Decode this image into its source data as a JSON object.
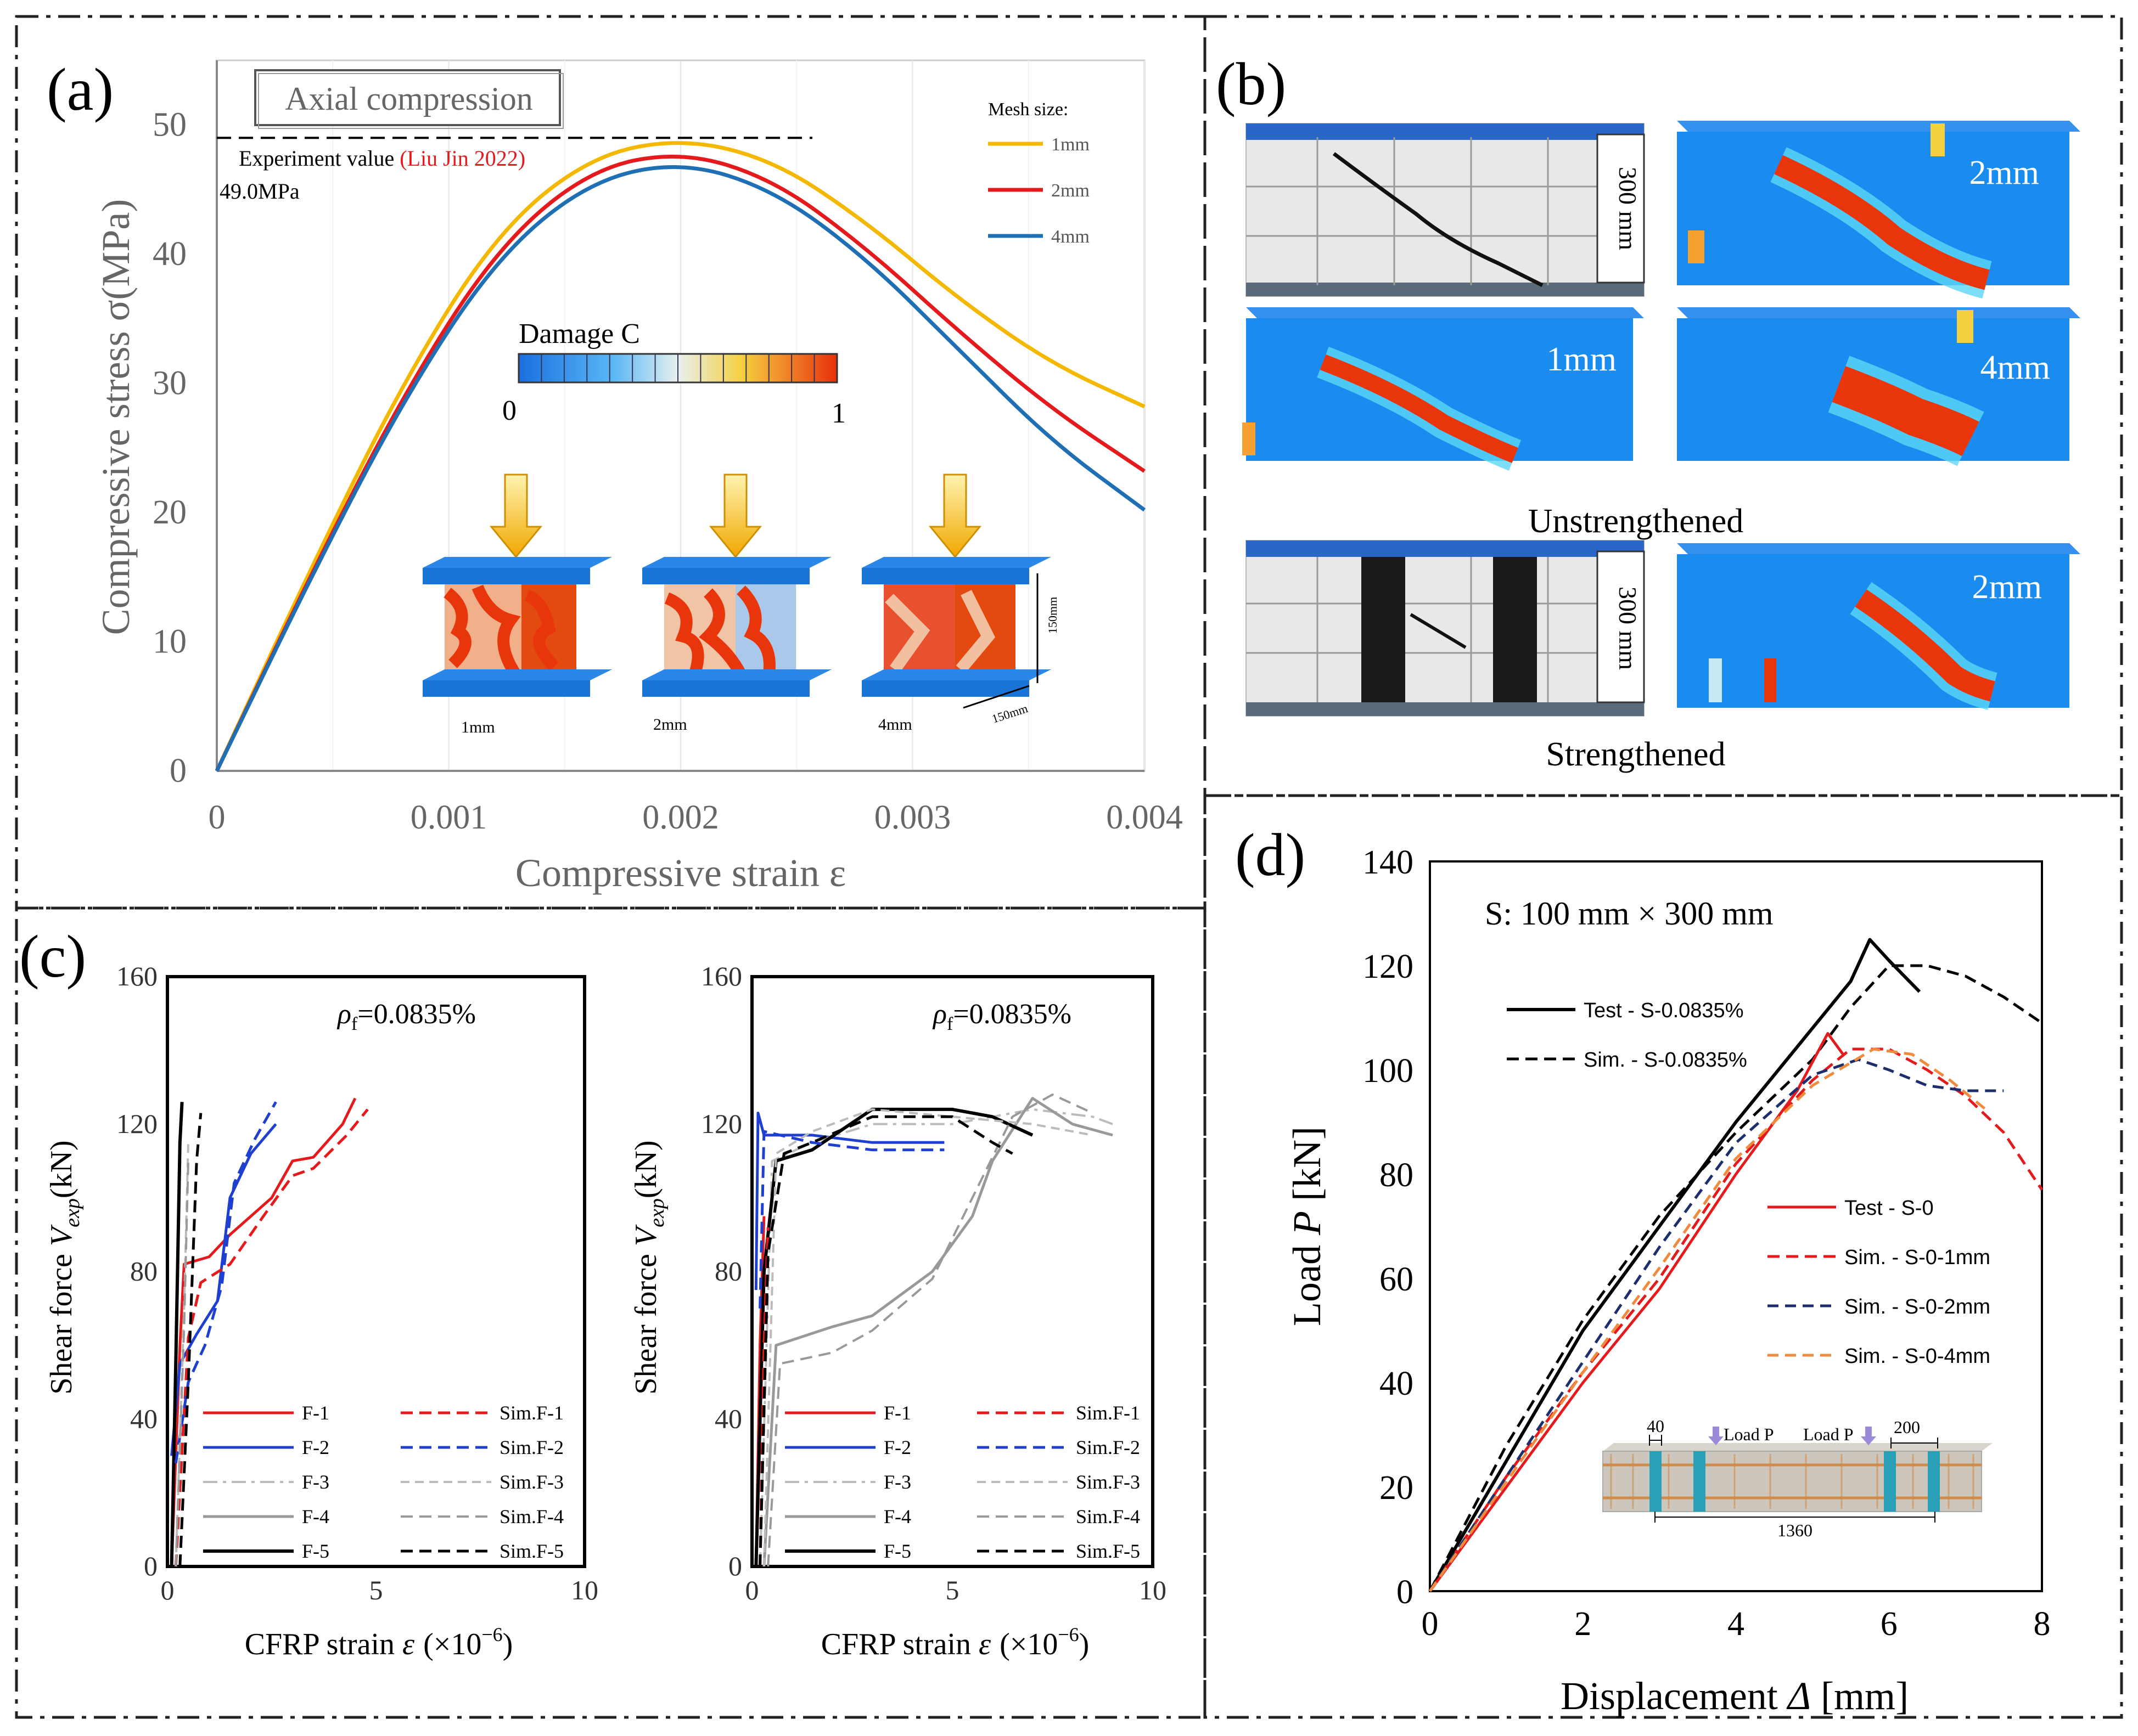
{
  "panel_labels": {
    "a": "(a)",
    "b": "(b)",
    "c": "(c)",
    "d": "(d)"
  },
  "colors": {
    "mesh1": "#f5b800",
    "mesh2": "#e41a1c",
    "mesh4": "#1f6fb5",
    "red": "#e41a1c",
    "blue": "#1f3fd0",
    "grey": "#999999",
    "black": "#000000",
    "orange": "#f08a3c",
    "navy": "#1c2f6b",
    "fe_blue": "#1a8cf0",
    "fe_red": "#e8350c"
  },
  "chart_data": [
    {
      "id": "a",
      "type": "line",
      "title": "Axial compression",
      "xlabel": "Compressive strain ε",
      "ylabel": "Compressive stress σ(MPa)",
      "xlim": [
        0,
        0.004
      ],
      "ylim": [
        0,
        55
      ],
      "xticks": [
        "0",
        "0.001",
        "0.002",
        "0.003",
        "0.004"
      ],
      "yticks": [
        "0",
        "10",
        "20",
        "30",
        "40",
        "50"
      ],
      "legend_title": "Mesh size:",
      "experiment": {
        "label_prefix": "Experiment value ",
        "label_ref": "(Liu Jin 2022)",
        "value_label": "49.0MPa",
        "value": 49.0
      },
      "series": [
        {
          "name": "1mm",
          "x": [
            0,
            0.0004,
            0.0008,
            0.0012,
            0.0016,
            0.002,
            0.0024,
            0.0028,
            0.0032,
            0.0036,
            0.004
          ],
          "y": [
            0,
            15.5,
            30,
            41.5,
            47.5,
            49.0,
            47.3,
            42.5,
            36.5,
            31.5,
            28.2
          ]
        },
        {
          "name": "2mm",
          "x": [
            0,
            0.0004,
            0.0008,
            0.0012,
            0.0016,
            0.002,
            0.0024,
            0.0028,
            0.0032,
            0.0036,
            0.004
          ],
          "y": [
            0,
            15.0,
            29,
            40.3,
            46.5,
            48.0,
            45.8,
            40.5,
            34.0,
            28.0,
            23.2
          ]
        },
        {
          "name": "4mm",
          "x": [
            0,
            0.0004,
            0.0008,
            0.0012,
            0.0016,
            0.002,
            0.0024,
            0.0028,
            0.0032,
            0.0036,
            0.004
          ],
          "y": [
            0,
            14.8,
            28.6,
            39.6,
            45.6,
            47.2,
            45.0,
            39.7,
            32.6,
            25.5,
            20.2
          ]
        }
      ],
      "colorbar": {
        "label": "Damage C",
        "min_label": "0",
        "max_label": "1"
      },
      "cubes": [
        {
          "label": "1mm"
        },
        {
          "label": "2mm"
        },
        {
          "label": "4mm"
        }
      ],
      "dim_labels": {
        "height": "150mm",
        "width": "150mm"
      }
    },
    {
      "id": "c-left",
      "type": "line",
      "annotation": "ρ",
      "annotation_sub": "f",
      "annotation_value": "=0.0835%",
      "xlabel_main": "CFRP strain ",
      "xlabel_var": "ε",
      "xlabel_unit": "(×10",
      "xlabel_exp": "−6",
      "xlabel_close": ")",
      "ylabel_main": "Shear force ",
      "ylabel_var": "V",
      "ylabel_sub": "exp",
      "ylabel_unit": "(kN)",
      "xlim": [
        0,
        10
      ],
      "ylim": [
        0,
        160
      ],
      "xticks": [
        "0",
        "5",
        "10"
      ],
      "yticks": [
        "0",
        "40",
        "80",
        "120",
        "160"
      ],
      "series": [
        {
          "name": "F-1",
          "style": "red-solid",
          "x": [
            0.1,
            0.3,
            0.4,
            1.0,
            1.5,
            2.5,
            3.0,
            3.5,
            4.2,
            4.5
          ],
          "y": [
            0,
            60,
            82,
            84,
            90,
            100,
            110,
            111,
            120,
            127
          ]
        },
        {
          "name": "F-2",
          "style": "blue-solid",
          "x": [
            0.1,
            0.3,
            0.7,
            1.2,
            1.5,
            2.0,
            2.6
          ],
          "y": [
            30,
            55,
            63,
            72,
            100,
            112,
            120
          ]
        },
        {
          "name": "F-3",
          "style": "grey-dashdot",
          "x": [
            0.1,
            0.2,
            0.3
          ],
          "y": [
            0,
            60,
            112
          ]
        },
        {
          "name": "F-4",
          "style": "grey-solid",
          "x": [
            0.1,
            0.2,
            0.3
          ],
          "y": [
            0,
            50,
            110
          ]
        },
        {
          "name": "F-5",
          "style": "black-solid",
          "x": [
            0.1,
            0.2,
            0.3,
            0.35
          ],
          "y": [
            0,
            55,
            115,
            126
          ]
        },
        {
          "name": "Sim.F-1",
          "style": "red-dashed",
          "x": [
            0.2,
            0.5,
            0.8,
            1.5,
            2.3,
            3.0,
            3.5,
            4.3,
            4.8
          ],
          "y": [
            0,
            62,
            77,
            82,
            95,
            106,
            108,
            117,
            124
          ]
        },
        {
          "name": "Sim.F-2",
          "style": "blue-dashed",
          "x": [
            0.2,
            0.5,
            0.9,
            1.3,
            1.6,
            2.1,
            2.6
          ],
          "y": [
            28,
            50,
            60,
            76,
            104,
            116,
            126
          ]
        },
        {
          "name": "Sim.F-3",
          "style": "grey-dashed",
          "x": [
            0.2,
            0.4,
            0.5
          ],
          "y": [
            0,
            70,
            115
          ]
        },
        {
          "name": "Sim.F-4",
          "style": "grey-dashed2",
          "x": [
            0.2,
            0.4,
            0.5
          ],
          "y": [
            0,
            65,
            110
          ]
        },
        {
          "name": "Sim.F-5",
          "style": "black-dashed",
          "x": [
            0.3,
            0.5,
            0.7,
            0.8
          ],
          "y": [
            0,
            50,
            110,
            123
          ]
        }
      ]
    },
    {
      "id": "c-right",
      "type": "line",
      "annotation": "ρ",
      "annotation_sub": "f",
      "annotation_value": "=0.0835%",
      "xlabel_main": "CFRP strain ",
      "xlabel_var": "ε",
      "xlabel_unit": "(×10",
      "xlabel_exp": "−6",
      "xlabel_close": ")",
      "ylabel_main": "Shear force ",
      "ylabel_var": "V",
      "ylabel_sub": "exp",
      "ylabel_unit": "(kN)",
      "xlim": [
        0,
        10
      ],
      "ylim": [
        0,
        160
      ],
      "xticks": [
        "0",
        "5",
        "10"
      ],
      "yticks": [
        "0",
        "40",
        "80",
        "120",
        "160"
      ],
      "series": [
        {
          "name": "F-1",
          "style": "red-solid",
          "x": [
            0.1,
            0.2,
            0.3
          ],
          "y": [
            0,
            60,
            95
          ]
        },
        {
          "name": "F-2",
          "style": "blue-solid",
          "x": [
            0.1,
            0.15,
            0.3,
            1.5,
            3.0,
            4.8
          ],
          "y": [
            75,
            123,
            117,
            117,
            115,
            115
          ]
        },
        {
          "name": "F-3",
          "style": "grey-dashdot",
          "x": [
            0.2,
            0.5,
            1.5,
            3.0,
            5.0,
            7.0,
            8.5,
            9.0
          ],
          "y": [
            0,
            110,
            115,
            120,
            120,
            124,
            122,
            120
          ]
        },
        {
          "name": "F-4",
          "style": "grey-solid",
          "x": [
            0.3,
            0.6,
            2.0,
            3.0,
            4.5,
            5.5,
            6.0,
            7.0,
            8.0,
            9.0
          ],
          "y": [
            0,
            60,
            65,
            68,
            80,
            95,
            110,
            127,
            120,
            117
          ]
        },
        {
          "name": "F-5",
          "style": "black-solid",
          "x": [
            0.1,
            0.3,
            0.6,
            1.5,
            3.0,
            5.0,
            6.0,
            7.0
          ],
          "y": [
            0,
            80,
            110,
            113,
            124,
            124,
            122,
            117
          ]
        },
        {
          "name": "Sim.F-1",
          "style": "red-dashed",
          "x": [
            0.2,
            0.3,
            0.4
          ],
          "y": [
            0,
            60,
            92
          ]
        },
        {
          "name": "Sim.F-2",
          "style": "blue-dashed",
          "x": [
            0.2,
            0.3,
            1.5,
            3.0,
            4.8
          ],
          "y": [
            70,
            118,
            115,
            113,
            113
          ]
        },
        {
          "name": "Sim.F-3",
          "style": "grey-dashed",
          "x": [
            0.3,
            0.6,
            1.5,
            3.0,
            5.0,
            7.0,
            8.5
          ],
          "y": [
            0,
            112,
            118,
            124,
            122,
            120,
            117
          ]
        },
        {
          "name": "Sim.F-4",
          "style": "grey-dashed2",
          "x": [
            0.4,
            0.7,
            2.0,
            3.0,
            4.5,
            5.5,
            6.5,
            7.5,
            8.5
          ],
          "y": [
            0,
            55,
            58,
            64,
            78,
            100,
            122,
            128,
            123
          ]
        },
        {
          "name": "Sim.F-5",
          "style": "black-dashed",
          "x": [
            0.2,
            0.4,
            0.8,
            1.5,
            3.0,
            5.0,
            6.0,
            6.5
          ],
          "y": [
            0,
            85,
            112,
            115,
            122,
            122,
            115,
            112
          ]
        }
      ]
    },
    {
      "id": "d",
      "type": "line",
      "title": "S: 100 mm × 300 mm",
      "xlabel_main": "Displacement ",
      "xlabel_var": "Δ",
      "xlabel_unit": " [mm]",
      "ylabel_main": "Load ",
      "ylabel_var": "P",
      "ylabel_unit": " [kN]",
      "xlim": [
        0,
        8
      ],
      "ylim": [
        0,
        140
      ],
      "xticks": [
        "0",
        "2",
        "4",
        "6",
        "8"
      ],
      "yticks": [
        "0",
        "20",
        "40",
        "60",
        "80",
        "100",
        "120",
        "140"
      ],
      "series": [
        {
          "name": "Test - S-0.0835%",
          "style": "black-solid",
          "x": [
            0,
            1.0,
            2.0,
            3.0,
            4.0,
            5.0,
            5.5,
            5.75,
            6.0,
            6.4
          ],
          "y": [
            0,
            25,
            50,
            70,
            90,
            108,
            117,
            125,
            121,
            115
          ]
        },
        {
          "name": "Sim. - S-0.0835%",
          "style": "black-dashed",
          "x": [
            0,
            1.0,
            2.0,
            3.0,
            4.0,
            5.0,
            5.5,
            6.0,
            6.5,
            7.0,
            7.5,
            8.0
          ],
          "y": [
            0,
            28,
            52,
            72,
            88,
            102,
            112,
            120,
            120,
            118,
            114,
            109
          ]
        },
        {
          "name": "Test - S-0",
          "style": "red-solid",
          "x": [
            0,
            1.0,
            2.0,
            3.0,
            4.0,
            4.8,
            5.2,
            5.4
          ],
          "y": [
            0,
            20,
            40,
            58,
            80,
            96,
            107,
            103
          ]
        },
        {
          "name": "Sim. - S-0-1mm",
          "style": "red-dashed",
          "x": [
            0,
            1.0,
            2.0,
            3.0,
            4.0,
            5.0,
            5.5,
            6.0,
            6.5,
            7.0,
            7.5,
            8.0
          ],
          "y": [
            0,
            22,
            42,
            60,
            82,
            98,
            104,
            104,
            100,
            95,
            88,
            77
          ]
        },
        {
          "name": "Sim. - S-0-2mm",
          "style": "navy-dashed",
          "x": [
            0,
            1.0,
            2.0,
            3.0,
            4.0,
            5.0,
            5.6,
            6.0,
            6.5,
            7.0,
            7.5
          ],
          "y": [
            0,
            22,
            44,
            66,
            86,
            99,
            102,
            100,
            97,
            96,
            96
          ]
        },
        {
          "name": "Sim. - S-0-4mm",
          "style": "orange-dashed",
          "x": [
            0,
            1.0,
            2.0,
            3.0,
            4.0,
            5.0,
            5.8,
            6.3,
            6.8,
            7.3
          ],
          "y": [
            0,
            21,
            42,
            62,
            83,
            97,
            104,
            103,
            98,
            92
          ]
        }
      ],
      "inset": {
        "load1": "Load P",
        "load2": "Load P",
        "dim40": "40",
        "dim200": "200",
        "span": "1360"
      }
    }
  ],
  "panel_b": {
    "photo_dim": "300 mm",
    "fe_labels": [
      "2mm",
      "1mm",
      "4mm",
      "2mm"
    ],
    "captions": {
      "unstrengthened": "Unstrengthened",
      "strengthened": "Strengthened"
    }
  }
}
